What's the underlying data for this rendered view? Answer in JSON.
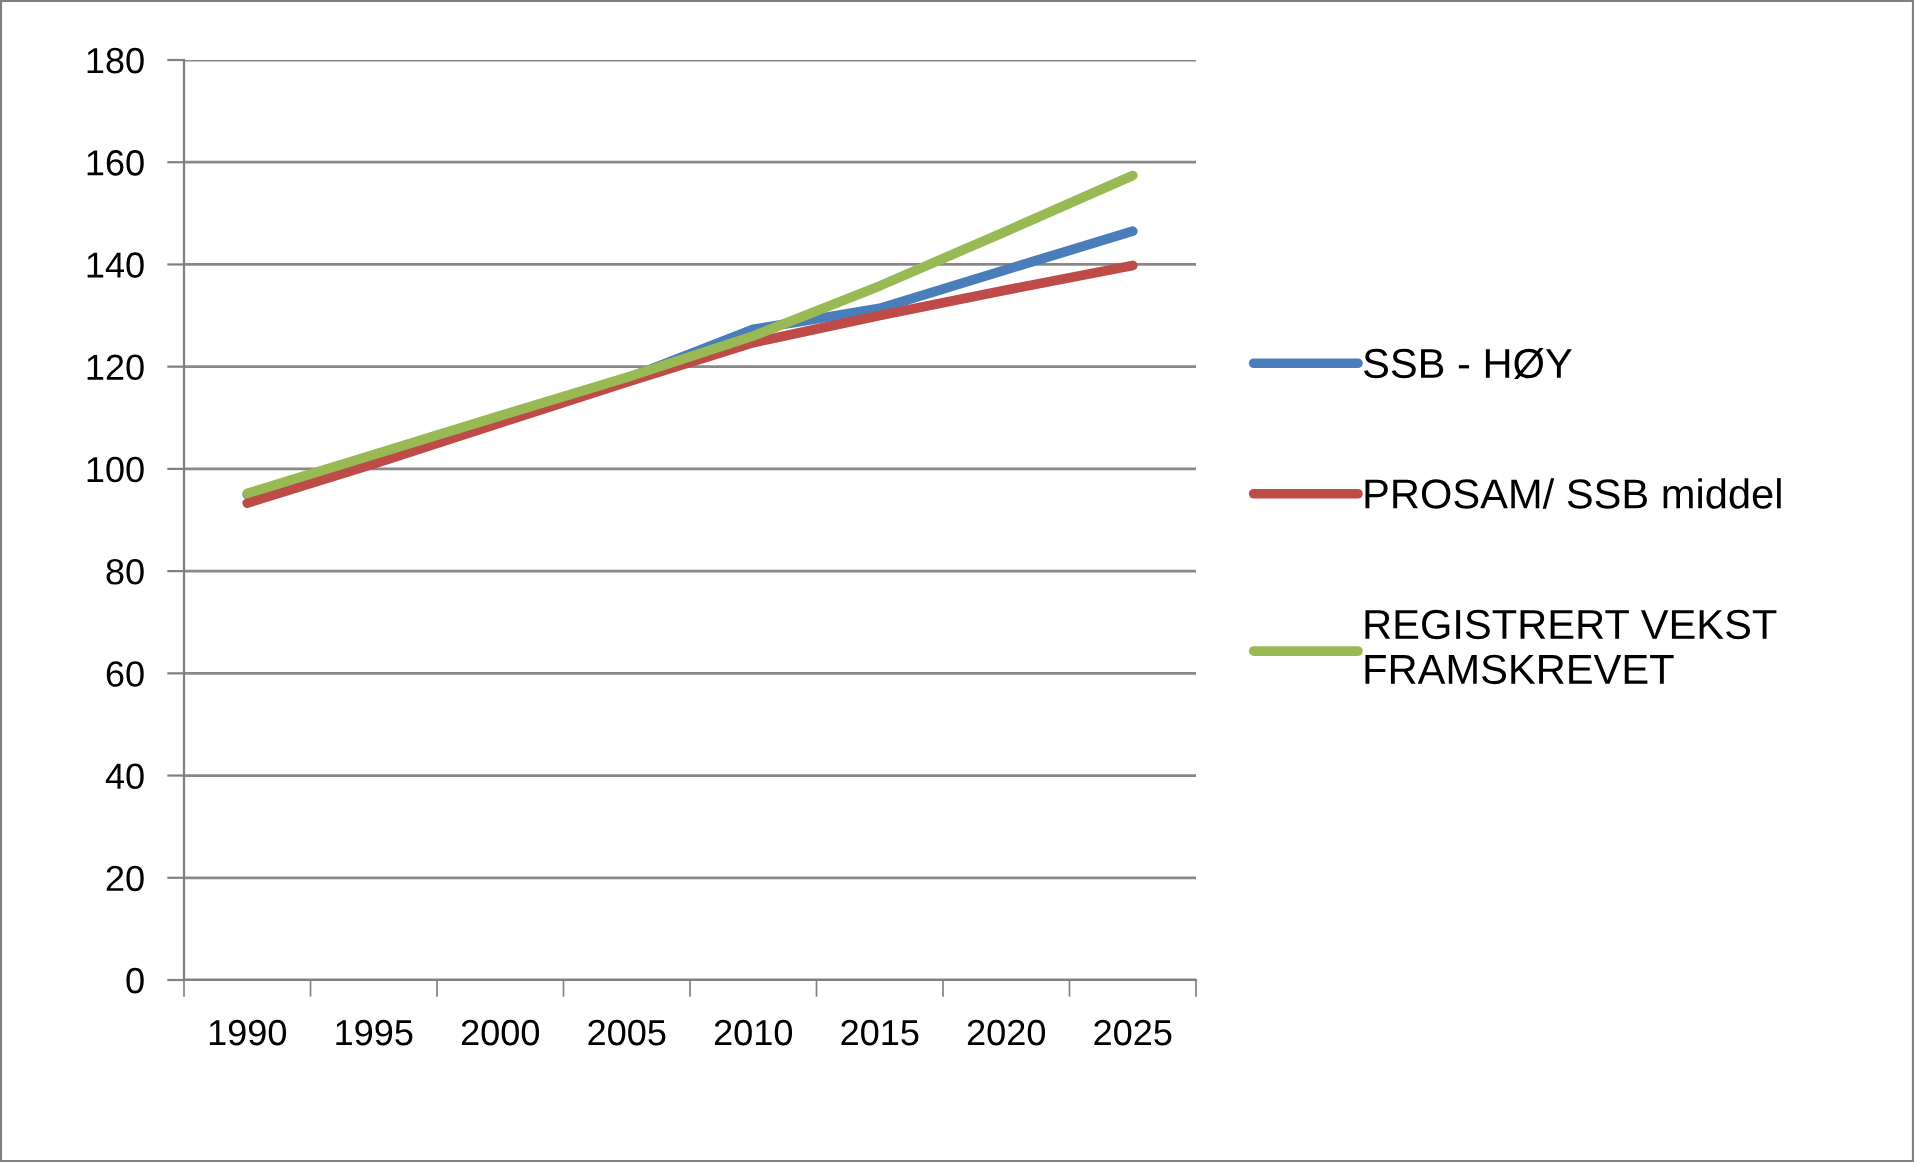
{
  "chart_data": {
    "type": "line",
    "categories": [
      "1990",
      "1995",
      "2000",
      "2005",
      "2010",
      "2015",
      "2020",
      "2025"
    ],
    "series": [
      {
        "name": "SSB - HØY",
        "color": "#4a7ebb",
        "values": [
          95,
          102.5,
          110,
          117.7,
          127.3,
          131.4,
          139,
          146.5
        ]
      },
      {
        "name": "PROSAM/ SSB middel",
        "color": "#be4b48",
        "values": [
          93.3,
          101,
          109,
          117,
          124.7,
          130,
          135,
          139.8
        ]
      },
      {
        "name": "REGISTRERT VEKST FRAMSKREVET",
        "color": "#98b954",
        "values": [
          95.2,
          102.8,
          110.4,
          117.9,
          126,
          135.8,
          146.5,
          157.4
        ]
      }
    ],
    "ylim": [
      0,
      180
    ],
    "yticks": [
      0,
      20,
      40,
      60,
      80,
      100,
      120,
      140,
      160,
      180
    ],
    "grid": "y",
    "legend": "right",
    "marker": "none",
    "line_style": "solid"
  }
}
